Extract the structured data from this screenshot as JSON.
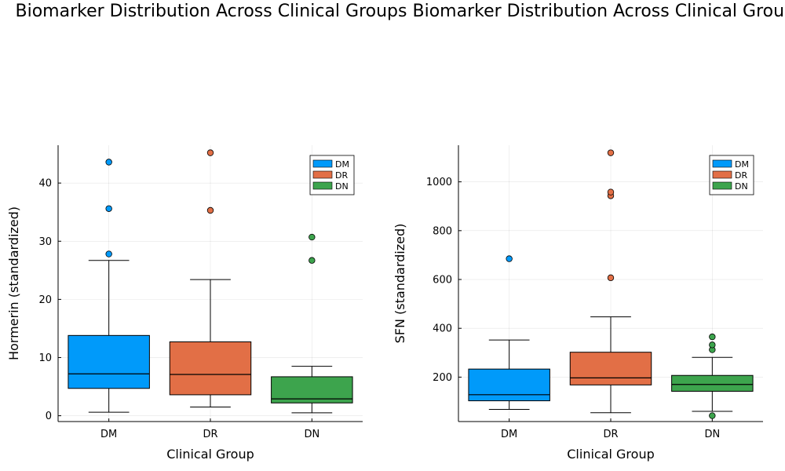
{
  "chart_data": [
    {
      "type": "box",
      "title": "Biomarker Distribution Across Clinical Groups",
      "xlabel": "Clinical Group",
      "ylabel": "Hormerin (standardized)",
      "categories": [
        "DM",
        "DR",
        "DN"
      ],
      "ylim": [
        -1,
        46.5
      ],
      "yticks": [
        0,
        10,
        20,
        30,
        40
      ],
      "grid": true,
      "legend": "top-right",
      "series": [
        {
          "name": "DM",
          "color": "#009AFA",
          "whisker_low": 0.6,
          "q1": 4.7,
          "median": 7.2,
          "q3": 13.8,
          "whisker_high": 26.7,
          "outliers": [
            27.8,
            35.6,
            43.6
          ]
        },
        {
          "name": "DR",
          "color": "#E26F46",
          "whisker_low": 1.5,
          "q1": 3.6,
          "median": 7.1,
          "q3": 12.7,
          "whisker_high": 23.4,
          "outliers": [
            35.3,
            45.2
          ]
        },
        {
          "name": "DN",
          "color": "#3DA44D",
          "whisker_low": 0.5,
          "q1": 2.2,
          "median": 2.9,
          "q3": 6.7,
          "whisker_high": 8.5,
          "outliers": [
            26.7,
            30.7
          ]
        }
      ]
    },
    {
      "type": "box",
      "title": "Biomarker Distribution Across Clinical Groups",
      "xlabel": "Clinical Group",
      "ylabel": "SFN (standardized)",
      "categories": [
        "DM",
        "DR",
        "DN"
      ],
      "ylim": [
        18,
        1150
      ],
      "yticks": [
        200,
        400,
        600,
        800,
        1000
      ],
      "grid": true,
      "legend": "top-right",
      "series": [
        {
          "name": "DM",
          "color": "#009AFA",
          "whisker_low": 68,
          "q1": 103,
          "median": 128,
          "q3": 233,
          "whisker_high": 352,
          "outliers": [
            685
          ]
        },
        {
          "name": "DR",
          "color": "#E26F46",
          "whisker_low": 54,
          "q1": 168,
          "median": 197,
          "q3": 302,
          "whisker_high": 447,
          "outliers": [
            607,
            943,
            958,
            1119
          ]
        },
        {
          "name": "DN",
          "color": "#3DA44D",
          "whisker_low": 60,
          "q1": 142,
          "median": 170,
          "q3": 207,
          "whisker_high": 281,
          "outliers": [
            42,
            312,
            332,
            365
          ]
        }
      ]
    }
  ]
}
